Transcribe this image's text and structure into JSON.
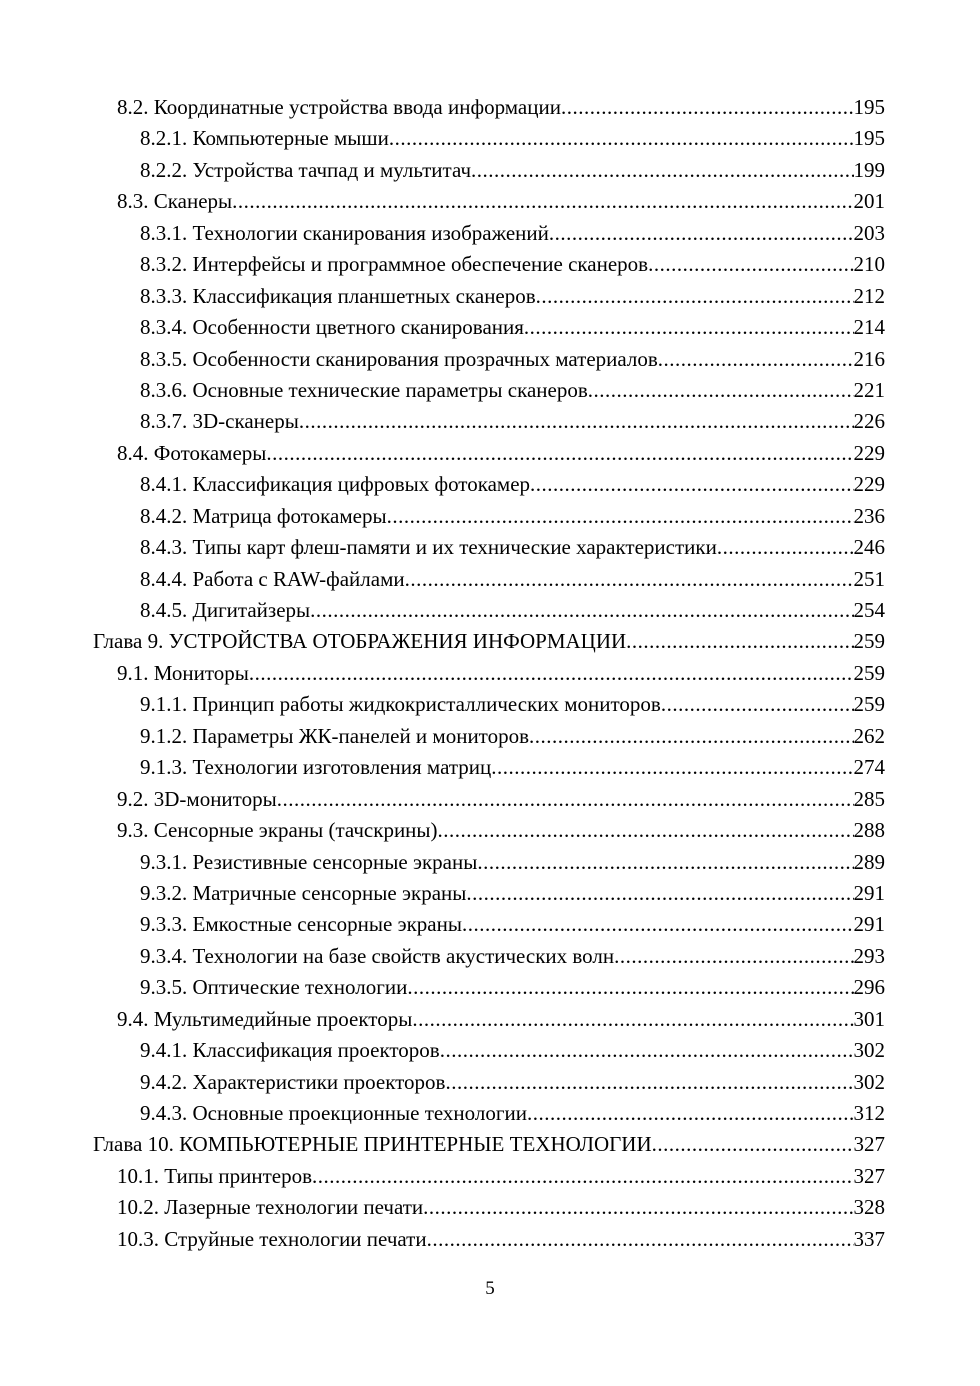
{
  "toc": [
    {
      "level": 2,
      "text": "8.2. Координатные устройства ввода информации",
      "page": "195"
    },
    {
      "level": 3,
      "text": "8.2.1. Компьютерные мыши",
      "page": "195"
    },
    {
      "level": 3,
      "text": "8.2.2. Устройства тачпад и мультитач",
      "page": "199"
    },
    {
      "level": 2,
      "text": "8.3. Сканеры",
      "page": "201"
    },
    {
      "level": 3,
      "text": "8.3.1. Технологии сканирования изображений",
      "page": "203"
    },
    {
      "level": 3,
      "text": "8.3.2. Интерфейсы и программное обеспечение сканеров",
      "page": "210"
    },
    {
      "level": 3,
      "text": "8.3.3. Классификация планшетных сканеров",
      "page": "212"
    },
    {
      "level": 3,
      "text": "8.3.4. Особенности цветного сканирования",
      "page": "214"
    },
    {
      "level": 3,
      "text": "8.3.5. Особенности сканирования прозрачных материалов",
      "page": "216"
    },
    {
      "level": 3,
      "text": "8.3.6. Основные технические параметры сканеров",
      "page": "221"
    },
    {
      "level": 3,
      "text": "8.3.7. 3D-сканеры",
      "page": "226"
    },
    {
      "level": 2,
      "text": "8.4. Фотокамеры",
      "page": "229"
    },
    {
      "level": 3,
      "text": "8.4.1. Классификация цифровых фотокамер",
      "page": "229"
    },
    {
      "level": 3,
      "text": "8.4.2. Матрица фотокамеры",
      "page": "236"
    },
    {
      "level": 3,
      "text": "8.4.3. Типы карт флеш-памяти и их технические характеристики",
      "page": "246"
    },
    {
      "level": 3,
      "text": "8.4.4. Работа с RAW-файлами",
      "page": "251"
    },
    {
      "level": 3,
      "text": "8.4.5. Дигитайзеры",
      "page": "254"
    },
    {
      "level": 1,
      "text": "Глава 9. УСТРОЙСТВА ОТОБРАЖЕНИЯ ИНФОРМАЦИИ",
      "page": "259"
    },
    {
      "level": 2,
      "text": "9.1. Мониторы",
      "page": "259"
    },
    {
      "level": 3,
      "text": "9.1.1. Принцип работы жидкокристаллических мониторов",
      "page": "259"
    },
    {
      "level": 3,
      "text": "9.1.2. Параметры ЖК-панелей и мониторов",
      "page": "262"
    },
    {
      "level": 3,
      "text": "9.1.3. Технологии изготовления матриц",
      "page": "274"
    },
    {
      "level": 2,
      "text": "9.2. 3D-мониторы",
      "page": "285"
    },
    {
      "level": 2,
      "text": "9.3. Сенсорные экраны (тачскрины)",
      "page": "288"
    },
    {
      "level": 3,
      "text": "9.3.1. Резистивные сенсорные экраны",
      "page": "289"
    },
    {
      "level": 3,
      "text": "9.3.2. Матричные сенсорные экраны",
      "page": "291"
    },
    {
      "level": 3,
      "text": "9.3.3. Емкостные сенсорные экраны",
      "page": "291"
    },
    {
      "level": 3,
      "text": "9.3.4. Технологии на базе свойств акустических волн",
      "page": "293"
    },
    {
      "level": 3,
      "text": "9.3.5. Оптические технологии",
      "page": "296"
    },
    {
      "level": 2,
      "text": "9.4. Мультимедийные проекторы",
      "page": "301"
    },
    {
      "level": 3,
      "text": "9.4.1. Классификация проекторов",
      "page": "302"
    },
    {
      "level": 3,
      "text": "9.4.2. Характеристики проекторов",
      "page": "302"
    },
    {
      "level": 3,
      "text": "9.4.3. Основные проекционные технологии",
      "page": "312"
    },
    {
      "level": 1,
      "text": "Глава 10. КОМПЬЮТЕРНЫЕ ПРИНТЕРНЫЕ ТЕХНОЛОГИИ",
      "page": "327"
    },
    {
      "level": 2,
      "text": "10.1. Типы принтеров",
      "page": "327"
    },
    {
      "level": 2,
      "text": "10.2. Лазерные технологии печати",
      "page": "328"
    },
    {
      "level": 2,
      "text": "10.3. Струйные технологии печати",
      "page": "337"
    }
  ],
  "page_number": "5"
}
